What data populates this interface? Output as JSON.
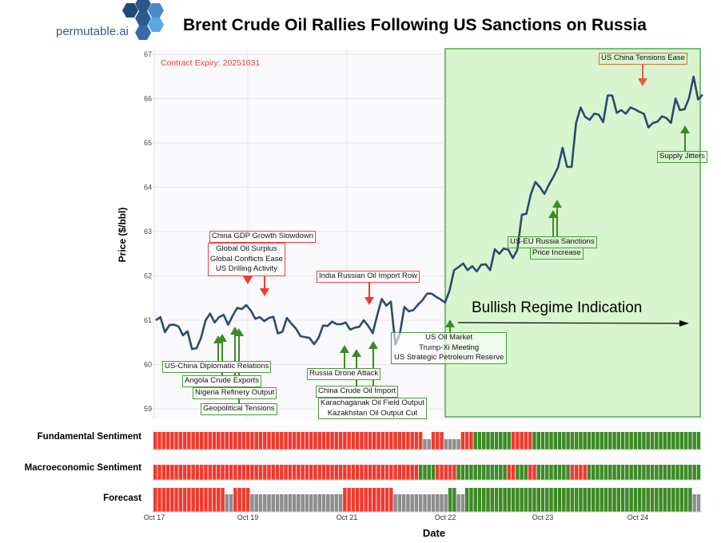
{
  "brand": {
    "logo_text": "permutable.ai"
  },
  "chart_data": {
    "type": "line",
    "title": "Brent Crude Oil Rallies Following US Sanctions on Russia",
    "xlabel": "Date",
    "ylabel": "Price ($/bbl)",
    "ylim": [
      59,
      67
    ],
    "yticks": [
      "67",
      "66",
      "65",
      "64",
      "63",
      "62",
      "61",
      "60",
      "59"
    ],
    "xticks": [
      "Oct 17",
      "Oct 19",
      "Oct 21",
      "Oct 22",
      "Oct 23",
      "Oct 24"
    ],
    "grid": true,
    "contract_expiry_label": "Contract Expiry: 20251031",
    "line_color": "#2c4a6e",
    "price": [
      61.0,
      61.07,
      60.73,
      60.89,
      60.9,
      60.86,
      60.66,
      60.75,
      60.35,
      60.37,
      60.6,
      61.0,
      61.15,
      60.95,
      61.07,
      61.12,
      60.9,
      61.1,
      61.28,
      61.25,
      61.34,
      61.22,
      61.03,
      61.07,
      60.98,
      61.05,
      61.08,
      60.7,
      60.74,
      61.05,
      60.92,
      60.81,
      60.64,
      60.62,
      60.6,
      60.46,
      60.6,
      60.88,
      60.87,
      60.97,
      60.91,
      60.91,
      60.95,
      60.79,
      60.83,
      60.85,
      61.0,
      60.87,
      60.71,
      61.12,
      61.48,
      61.33,
      61.42,
      60.45,
      60.7,
      61.3,
      61.2,
      61.23,
      61.35,
      61.45,
      61.6,
      61.6,
      61.53,
      61.47,
      61.4,
      61.67,
      62.13,
      62.2,
      62.28,
      62.13,
      62.22,
      62.1,
      62.25,
      62.26,
      62.13,
      62.6,
      62.5,
      62.62,
      62.59,
      62.4,
      62.59,
      63.38,
      63.4,
      63.85,
      64.12,
      64.0,
      63.85,
      64.06,
      64.24,
      64.45,
      64.89,
      64.46,
      64.46,
      65.45,
      65.8,
      65.59,
      65.52,
      65.66,
      65.64,
      65.47,
      66.07,
      66.07,
      65.68,
      65.74,
      65.66,
      65.8,
      65.76,
      65.7,
      65.66,
      65.35,
      65.45,
      65.48,
      65.6,
      65.56,
      65.45,
      66.0,
      65.74,
      65.76,
      66.01,
      66.5,
      65.98,
      66.09
    ],
    "regime": {
      "label": "Bullish Regime Indication",
      "fill": "#d8f5cf",
      "border": "#4caf50"
    },
    "annotations": {
      "china_gdp": "China GDP Growth Slowdown",
      "global_group": [
        "Global Oil Surplus",
        "Global Conflicts Ease",
        "US Drilling Activity"
      ],
      "india_row": "India Russian Oil Import Row",
      "us_china_ease": "US China Tensions Ease",
      "us_china_diplomatic": "US-China Diplomatic Relations",
      "angola": "Angola Crude Exports",
      "nigeria": "Nigeria Refinery Output",
      "geopolitical": "Geopolitical Tensions",
      "russia_drone": "Russia Drone Attack",
      "china_import": "China Crude Oil Import",
      "kazakh_group": [
        "Karachaganak Oil Field Output",
        "Kazakhstan Oil Output Cut"
      ],
      "us_group": [
        "US Oil Market",
        "Trump-Xi Meeting",
        "US Strategic Petroleum Reserve"
      ],
      "us_eu": "US-EU Russia Sanctions",
      "price_increase": "Price Increase",
      "supply_jitters": "Supply Jitters"
    },
    "colors": {
      "bearish": "#f03a2e",
      "bullish": "#3d8a24",
      "neutral": "#8e8e8e"
    },
    "sentiment_rows": [
      {
        "label": "Fundamental Sentiment",
        "runs": [
          [
            "bearish",
            64
          ],
          [
            "neutral",
            2
          ],
          [
            "bearish",
            3
          ],
          [
            "neutral",
            4
          ],
          [
            "bearish",
            3
          ],
          [
            "bullish",
            9
          ],
          [
            "bearish",
            5
          ],
          [
            "bullish",
            40
          ]
        ]
      },
      {
        "label": "Macroeconomic Sentiment",
        "runs": [
          [
            "bearish",
            63
          ],
          [
            "bullish",
            4
          ],
          [
            "bearish",
            5
          ],
          [
            "bullish",
            12
          ],
          [
            "bearish",
            2
          ],
          [
            "bullish",
            3
          ],
          [
            "bearish",
            2
          ],
          [
            "bullish",
            8
          ],
          [
            "bearish",
            4
          ],
          [
            "bullish",
            27
          ]
        ]
      },
      {
        "label": "Forecast",
        "runs": [
          [
            "bearish",
            17
          ],
          [
            "neutral",
            2
          ],
          [
            "bearish",
            4
          ],
          [
            "neutral",
            22
          ],
          [
            "bearish",
            12
          ],
          [
            "neutral",
            13
          ],
          [
            "bullish",
            2
          ],
          [
            "neutral",
            2
          ],
          [
            "bullish",
            54
          ],
          [
            "neutral",
            2
          ]
        ]
      }
    ]
  }
}
